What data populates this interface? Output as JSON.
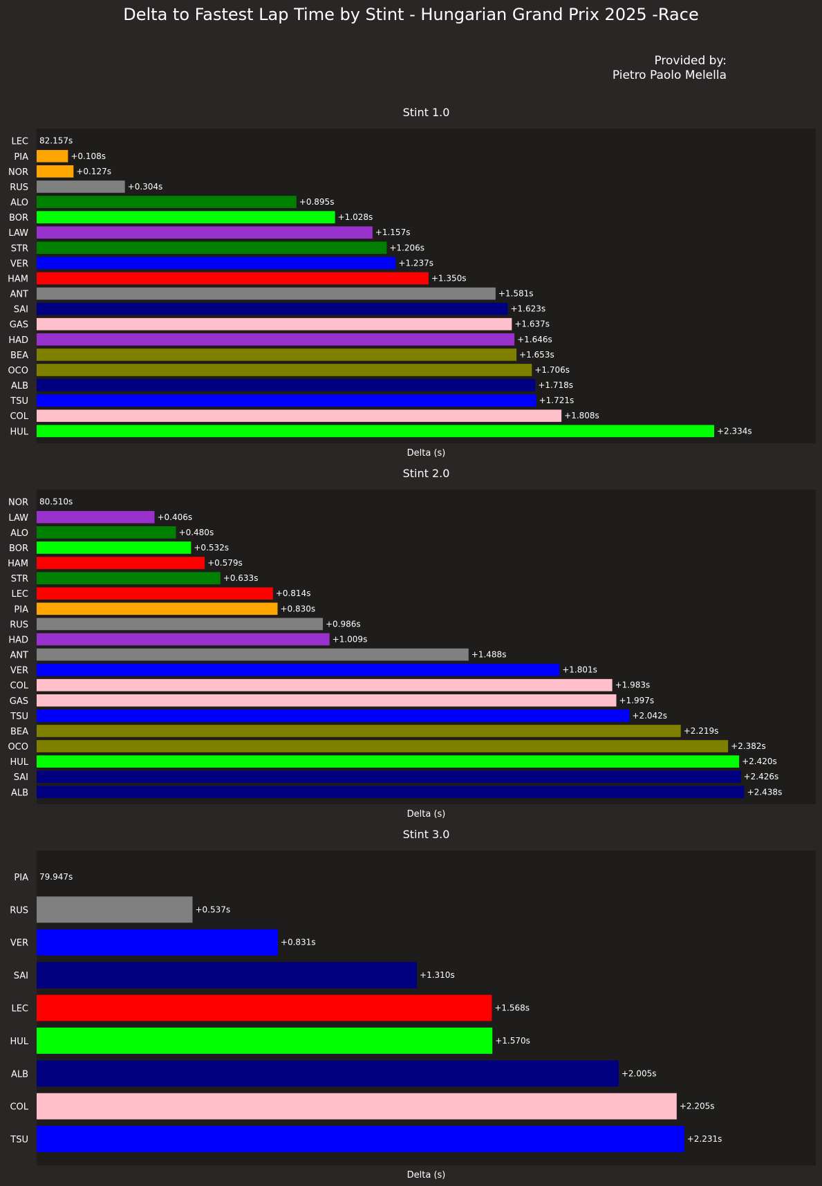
{
  "title": "Delta to Fastest Lap Time by Stint - Hungarian Grand Prix 2025 -Race",
  "credit": {
    "line1": "Provided by:",
    "line2": "Pietro Paolo Melella"
  },
  "colors": {
    "figure_bg": "#292625",
    "axes_bg": "#1e1d1c"
  },
  "chart_data": [
    {
      "type": "bar",
      "orientation": "horizontal",
      "title": "Stint 1.0",
      "xlabel": "Delta (s)",
      "fastest_label": "82.157s",
      "categories": [
        "LEC",
        "PIA",
        "NOR",
        "RUS",
        "ALO",
        "BOR",
        "LAW",
        "STR",
        "VER",
        "HAM",
        "ANT",
        "SAI",
        "GAS",
        "HAD",
        "BEA",
        "OCO",
        "ALB",
        "TSU",
        "COL",
        "HUL"
      ],
      "values": [
        0,
        0.108,
        0.127,
        0.304,
        0.895,
        1.028,
        1.157,
        1.206,
        1.237,
        1.35,
        1.581,
        1.623,
        1.637,
        1.646,
        1.653,
        1.706,
        1.718,
        1.721,
        1.808,
        2.334
      ],
      "labels": [
        "",
        "+0.108s",
        "+0.127s",
        "+0.304s",
        "+0.895s",
        "+1.028s",
        "+1.157s",
        "+1.206s",
        "+1.237s",
        "+1.350s",
        "+1.581s",
        "+1.623s",
        "+1.637s",
        "+1.646s",
        "+1.653s",
        "+1.706s",
        "+1.718s",
        "+1.721s",
        "+1.808s",
        "+2.334s"
      ],
      "colors": [
        "#ff0000",
        "#ffa500",
        "#ffa500",
        "#808080",
        "#008000",
        "#00ff00",
        "#9932cc",
        "#008000",
        "#0000ff",
        "#ff0000",
        "#808080",
        "#000080",
        "#ffc0cb",
        "#9932cc",
        "#808000",
        "#808000",
        "#000080",
        "#0000ff",
        "#ffc0cb",
        "#00ff00"
      ]
    },
    {
      "type": "bar",
      "orientation": "horizontal",
      "title": "Stint 2.0",
      "xlabel": "Delta (s)",
      "fastest_label": "80.510s",
      "categories": [
        "NOR",
        "LAW",
        "ALO",
        "BOR",
        "HAM",
        "STR",
        "LEC",
        "PIA",
        "RUS",
        "HAD",
        "ANT",
        "VER",
        "COL",
        "GAS",
        "TSU",
        "BEA",
        "OCO",
        "HUL",
        "SAI",
        "ALB"
      ],
      "values": [
        0,
        0.406,
        0.48,
        0.532,
        0.579,
        0.633,
        0.814,
        0.83,
        0.986,
        1.009,
        1.488,
        1.801,
        1.983,
        1.997,
        2.042,
        2.219,
        2.382,
        2.42,
        2.426,
        2.438
      ],
      "labels": [
        "",
        "+0.406s",
        "+0.480s",
        "+0.532s",
        "+0.579s",
        "+0.633s",
        "+0.814s",
        "+0.830s",
        "+0.986s",
        "+1.009s",
        "+1.488s",
        "+1.801s",
        "+1.983s",
        "+1.997s",
        "+2.042s",
        "+2.219s",
        "+2.382s",
        "+2.420s",
        "+2.426s",
        "+2.438s"
      ],
      "colors": [
        "#ffa500",
        "#9932cc",
        "#008000",
        "#00ff00",
        "#ff0000",
        "#008000",
        "#ff0000",
        "#ffa500",
        "#808080",
        "#9932cc",
        "#808080",
        "#0000ff",
        "#ffc0cb",
        "#ffc0cb",
        "#0000ff",
        "#808000",
        "#808000",
        "#00ff00",
        "#000080",
        "#000080"
      ]
    },
    {
      "type": "bar",
      "orientation": "horizontal",
      "title": "Stint 3.0",
      "xlabel": "Delta (s)",
      "fastest_label": "79.947s",
      "categories": [
        "PIA",
        "RUS",
        "VER",
        "SAI",
        "LEC",
        "HUL",
        "ALB",
        "COL",
        "TSU"
      ],
      "values": [
        0,
        0.537,
        0.831,
        1.31,
        1.568,
        1.57,
        2.005,
        2.205,
        2.231
      ],
      "labels": [
        "",
        "+0.537s",
        "+0.831s",
        "+1.310s",
        "+1.568s",
        "+1.570s",
        "+2.005s",
        "+2.205s",
        "+2.231s"
      ],
      "colors": [
        "#ffa500",
        "#808080",
        "#0000ff",
        "#000080",
        "#ff0000",
        "#00ff00",
        "#000080",
        "#ffc0cb",
        "#0000ff"
      ]
    }
  ]
}
